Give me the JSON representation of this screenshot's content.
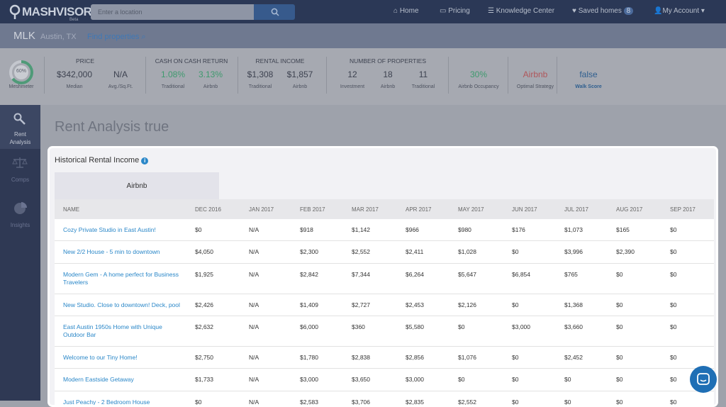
{
  "nav": {
    "logo": "MASHVISOR",
    "logo_badge": "Beta",
    "search_placeholder": "Enter a location",
    "links": [
      "Home",
      "Pricing",
      "Knowledge Center",
      "Saved homes",
      "My Account"
    ],
    "saved_count": "8"
  },
  "location": {
    "name": "MLK",
    "city": "Austin, TX",
    "link": "Find properties"
  },
  "stats": {
    "meshmeter": {
      "value": "60%",
      "label": "Meshmeter"
    },
    "groups": [
      {
        "title": "PRICE",
        "items": [
          {
            "value": "$342,000",
            "label": "Median"
          },
          {
            "value": "N/A",
            "label": "Avg./Sq.Ft."
          }
        ]
      },
      {
        "title": "CASH ON CASH RETURN",
        "items": [
          {
            "value": "1.08%",
            "label": "Traditional",
            "color": "#3f9a6e"
          },
          {
            "value": "3.13%",
            "label": "Airbnb",
            "color": "#3f9a6e"
          }
        ]
      },
      {
        "title": "RENTAL INCOME",
        "items": [
          {
            "value": "$1,308",
            "label": "Traditional"
          },
          {
            "value": "$1,857",
            "label": "Airbnb"
          }
        ]
      },
      {
        "title": "NUMBER OF PROPERTIES",
        "items": [
          {
            "value": "12",
            "label": "Investment"
          },
          {
            "value": "18",
            "label": "Airbnb"
          },
          {
            "value": "11",
            "label": "Traditional"
          }
        ]
      },
      {
        "items": [
          {
            "value": "30%",
            "label": "Airbnb Occupancy",
            "color": "#3f9a6e"
          }
        ]
      },
      {
        "items": [
          {
            "value": "Airbnb",
            "label": "Optimal Strategy",
            "color": "#b0565a"
          }
        ]
      },
      {
        "items": [
          {
            "value": "false",
            "label": "Walk Score",
            "color": "#2f5f8f"
          }
        ]
      }
    ]
  },
  "sidebar": [
    "Rent Analysis",
    "Comps",
    "Insights"
  ],
  "heading": "Rent Analysis true",
  "panel": {
    "title": "Historical Rental Income",
    "tab": "Airbnb",
    "columns": [
      "NAME",
      "DEC 2016",
      "JAN 2017",
      "FEB 2017",
      "MAR 2017",
      "APR 2017",
      "MAY 2017",
      "JUN 2017",
      "JUL 2017",
      "AUG 2017",
      "SEP 2017"
    ],
    "rows": [
      {
        "name": "Cozy Private Studio in East Austin!",
        "values": [
          "$0",
          "N/A",
          "$918",
          "$1,142",
          "$966",
          "$980",
          "$176",
          "$1,073",
          "$165",
          "$0"
        ]
      },
      {
        "name": "New 2/2 House - 5 min to downtown",
        "values": [
          "$4,050",
          "N/A",
          "$2,300",
          "$2,552",
          "$2,411",
          "$1,028",
          "$0",
          "$3,996",
          "$2,390",
          "$0"
        ]
      },
      {
        "name": "Modern Gem - A home perfect for Business Travelers",
        "values": [
          "$1,925",
          "N/A",
          "$2,842",
          "$7,344",
          "$6,264",
          "$5,647",
          "$6,854",
          "$765",
          "$0",
          "$0"
        ]
      },
      {
        "name": "New Studio. Close to downtown! Deck, pool",
        "values": [
          "$2,426",
          "N/A",
          "$1,409",
          "$2,727",
          "$2,453",
          "$2,126",
          "$0",
          "$1,368",
          "$0",
          "$0"
        ]
      },
      {
        "name": "East Austin 1950s Home with Unique Outdoor Bar",
        "values": [
          "$2,632",
          "N/A",
          "$6,000",
          "$360",
          "$5,580",
          "$0",
          "$3,000",
          "$3,660",
          "$0",
          "$0"
        ]
      },
      {
        "name": "Welcome to our Tiny Home!",
        "values": [
          "$2,750",
          "N/A",
          "$1,780",
          "$2,838",
          "$2,856",
          "$1,076",
          "$0",
          "$2,452",
          "$0",
          "$0"
        ]
      },
      {
        "name": "Modern Eastside Getaway",
        "values": [
          "$1,733",
          "N/A",
          "$3,000",
          "$3,650",
          "$3,000",
          "$0",
          "$0",
          "$0",
          "$0",
          "$0"
        ]
      },
      {
        "name": "Just Peachy - 2 Bedroom House",
        "values": [
          "$0",
          "N/A",
          "$2,583",
          "$3,706",
          "$2,835",
          "$2,552",
          "$0",
          "$0",
          "$0",
          "$0"
        ]
      }
    ]
  }
}
